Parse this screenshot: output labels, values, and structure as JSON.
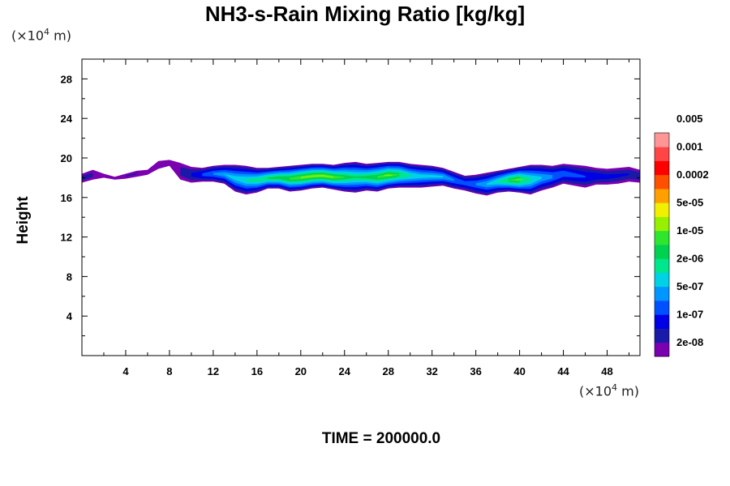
{
  "chart_data": {
    "type": "heatmap",
    "title": "NH3-s-Rain Mixing Ratio [kg/kg]",
    "ylabel": "Height",
    "y_unit": {
      "prefix": "(×10",
      "exp": "4",
      "suffix": " m)"
    },
    "x_unit": {
      "prefix": "(×10",
      "exp": "4",
      "suffix": " m)"
    },
    "footer": "TIME = 200000.0",
    "xlim": [
      0,
      51
    ],
    "ylim": [
      0,
      30
    ],
    "xticks": [
      4,
      8,
      12,
      16,
      20,
      24,
      28,
      32,
      36,
      40,
      44,
      48
    ],
    "yticks": [
      4,
      8,
      12,
      16,
      20,
      24,
      28
    ],
    "colorbar": {
      "colors": [
        "#7a00b0",
        "#1a1aa8",
        "#0000e6",
        "#0050ff",
        "#0096ff",
        "#00d2e6",
        "#00e68c",
        "#00d250",
        "#2ee62e",
        "#96f000",
        "#f0f000",
        "#ffa000",
        "#ff5000",
        "#ff0000",
        "#ff4646",
        "#ff9696"
      ],
      "labels": [
        "2e-08",
        "1e-07",
        "5e-07",
        "2e-06",
        "1e-05",
        "5e-05",
        "0.0002",
        "0.001",
        "0.005"
      ]
    },
    "cloud": {
      "x": [
        0,
        1,
        2,
        3,
        4,
        5,
        6,
        7,
        8,
        9,
        10,
        11,
        12,
        13,
        14,
        15,
        16,
        17,
        18,
        19,
        20,
        21,
        22,
        23,
        24,
        25,
        26,
        27,
        28,
        29,
        30,
        31,
        32,
        33,
        34,
        35,
        36,
        37,
        38,
        39,
        40,
        41,
        42,
        43,
        44,
        45,
        46,
        47,
        48,
        49,
        50,
        51
      ],
      "top": [
        18.4,
        18.8,
        18.4,
        18.1,
        18.4,
        18.7,
        18.8,
        19.7,
        19.8,
        19.5,
        19.1,
        19.0,
        19.2,
        19.3,
        19.3,
        19.2,
        19.0,
        19.0,
        19.1,
        19.2,
        19.3,
        19.4,
        19.4,
        19.3,
        19.5,
        19.6,
        19.4,
        19.5,
        19.6,
        19.6,
        19.4,
        19.3,
        19.2,
        19.0,
        18.6,
        18.2,
        18.3,
        18.5,
        18.7,
        18.9,
        19.1,
        19.3,
        19.3,
        19.2,
        19.4,
        19.3,
        19.2,
        19.0,
        18.9,
        19.0,
        19.1,
        18.8
      ],
      "bottom": [
        17.5,
        17.8,
        18.0,
        17.8,
        17.9,
        18.1,
        18.3,
        18.9,
        19.2,
        17.8,
        17.5,
        17.6,
        17.6,
        17.4,
        16.6,
        16.3,
        16.5,
        16.9,
        16.9,
        16.6,
        16.7,
        16.9,
        17.0,
        16.8,
        16.6,
        16.5,
        16.7,
        16.6,
        16.9,
        17.0,
        17.0,
        17.0,
        17.1,
        17.2,
        16.9,
        16.7,
        16.4,
        16.2,
        16.5,
        16.6,
        16.5,
        16.3,
        16.7,
        17.0,
        17.4,
        17.2,
        17.0,
        17.3,
        17.3,
        17.4,
        17.6,
        17.5
      ],
      "intensity": [
        0.12,
        0.1,
        0.06,
        0.05,
        0.08,
        0.08,
        0.05,
        0.04,
        0.06,
        0.12,
        0.18,
        0.3,
        0.38,
        0.45,
        0.52,
        0.58,
        0.63,
        0.68,
        0.72,
        0.78,
        0.83,
        0.84,
        0.85,
        0.83,
        0.74,
        0.66,
        0.7,
        0.77,
        0.82,
        0.73,
        0.6,
        0.52,
        0.5,
        0.48,
        0.38,
        0.33,
        0.38,
        0.47,
        0.58,
        0.74,
        0.82,
        0.62,
        0.48,
        0.4,
        0.34,
        0.3,
        0.26,
        0.23,
        0.2,
        0.18,
        0.16,
        0.14
      ]
    }
  }
}
